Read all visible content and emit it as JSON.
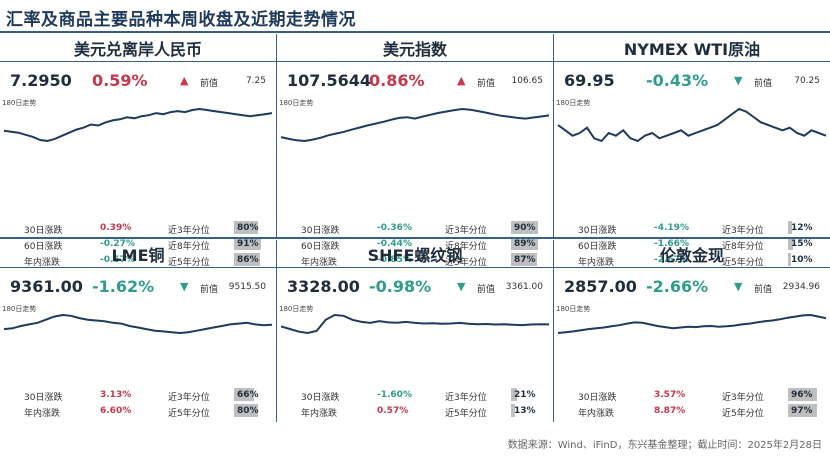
{
  "page": {
    "title": "汇率及商品主要品种本周收盘及近期走势情况",
    "source": "数据来源：Wind、iFinD，东兴基金整理；截止时间：2025年2月28日"
  },
  "colors": {
    "up": "#c8374b",
    "down": "#2f9d8a",
    "line": "#1f3a5c",
    "bar": "#bfbfbf"
  },
  "panels": [
    {
      "name": "美元兑离岸人民币",
      "price": "7.2950",
      "change": "0.59%",
      "direction": "up",
      "arrow": "▲",
      "prev_label": "前值",
      "prev": "7.25",
      "mini_label": "180日走势",
      "stats": [
        {
          "label": "30日涨跌",
          "value": "0.39%",
          "direction": "up",
          "pctl_label": "近3年分位",
          "pctl": "80%",
          "pctl_value": 80
        },
        {
          "label": "60日涨跌",
          "value": "-0.27%",
          "direction": "down",
          "pctl_label": "近8年分位",
          "pctl": "91%",
          "pctl_value": 91
        },
        {
          "label": "年内涨跌",
          "value": "-0.57%",
          "direction": "down",
          "pctl_label": "近5年分位",
          "pctl": "86%",
          "pctl_value": 86
        }
      ]
    },
    {
      "name": "美元指数",
      "price": "107.5644",
      "change": "0.86%",
      "direction": "up",
      "arrow": "▲",
      "prev_label": "前值",
      "prev": "106.65",
      "mini_label": "180日走势",
      "stats": [
        {
          "label": "30日涨跌",
          "value": "-0.36%",
          "direction": "down",
          "pctl_label": "近3年分位",
          "pctl": "90%",
          "pctl_value": 90
        },
        {
          "label": "60日涨跌",
          "value": "-0.44%",
          "direction": "down",
          "pctl_label": "近8年分位",
          "pctl": "89%",
          "pctl_value": 89
        },
        {
          "label": "年内涨跌",
          "value": "-0.85%",
          "direction": "down",
          "pctl_label": "近5年分位",
          "pctl": "87%",
          "pctl_value": 87
        }
      ]
    },
    {
      "name": "NYMEX WTI原油",
      "price": "69.95",
      "change": "-0.43%",
      "direction": "down",
      "arrow": "▼",
      "prev_label": "前值",
      "prev": "70.25",
      "mini_label": "180日走势",
      "stats": [
        {
          "label": "30日涨跌",
          "value": "-4.19%",
          "direction": "down",
          "pctl_label": "近3年分位",
          "pctl": "12%",
          "pctl_value": 12
        },
        {
          "label": "60日涨跌",
          "value": "-1.66%",
          "direction": "down",
          "pctl_label": "近8年分位",
          "pctl": "15%",
          "pctl_value": 15
        },
        {
          "label": "年内涨跌",
          "value": "-2.67%",
          "direction": "down",
          "pctl_label": "近5年分位",
          "pctl": "10%",
          "pctl_value": 10
        }
      ]
    },
    {
      "name": "LME铜",
      "price": "9361.00",
      "change": "-1.62%",
      "direction": "down",
      "arrow": "▼",
      "prev_label": "前值",
      "prev": "9515.50",
      "mini_label": "180日走势",
      "stats": [
        {
          "label": "30日涨跌",
          "value": "3.13%",
          "direction": "up",
          "pctl_label": "近3年分位",
          "pctl": "66%",
          "pctl_value": 66
        },
        {
          "label": "年内涨跌",
          "value": "6.60%",
          "direction": "up",
          "pctl_label": "近5年分位",
          "pctl": "80%",
          "pctl_value": 80
        }
      ]
    },
    {
      "name": "SHFE螺纹钢",
      "price": "3328.00",
      "change": "-0.98%",
      "direction": "down",
      "arrow": "▼",
      "prev_label": "前值",
      "prev": "3361.00",
      "mini_label": "180日走势",
      "stats": [
        {
          "label": "30日涨跌",
          "value": "-1.60%",
          "direction": "down",
          "pctl_label": "近3年分位",
          "pctl": "21%",
          "pctl_value": 21
        },
        {
          "label": "年内涨跌",
          "value": "0.57%",
          "direction": "up",
          "pctl_label": "近5年分位",
          "pctl": "13%",
          "pctl_value": 13
        }
      ]
    },
    {
      "name": "伦敦金现",
      "price": "2857.00",
      "change": "-2.66%",
      "direction": "down",
      "arrow": "▼",
      "prev_label": "前值",
      "prev": "2934.96",
      "mini_label": "180日走势",
      "stats": [
        {
          "label": "30日涨跌",
          "value": "3.57%",
          "direction": "up",
          "pctl_label": "近3年分位",
          "pctl": "96%",
          "pctl_value": 96
        },
        {
          "label": "年内涨跌",
          "value": "8.87%",
          "direction": "up",
          "pctl_label": "近5年分位",
          "pctl": "97%",
          "pctl_value": 97
        }
      ]
    }
  ],
  "chart_data": [
    {
      "type": "line",
      "title": "美元兑离岸人民币 180日走势",
      "values": [
        7.12,
        7.11,
        7.1,
        7.08,
        7.06,
        7.03,
        7.02,
        7.04,
        7.07,
        7.1,
        7.13,
        7.15,
        7.18,
        7.17,
        7.2,
        7.22,
        7.23,
        7.25,
        7.24,
        7.26,
        7.27,
        7.29,
        7.28,
        7.3,
        7.31,
        7.3,
        7.32,
        7.33,
        7.32,
        7.31,
        7.3,
        7.29,
        7.28,
        7.27,
        7.26,
        7.27,
        7.28,
        7.29
      ]
    },
    {
      "title": "美元指数 180日走势",
      "type": "line",
      "values": [
        101.5,
        101.0,
        100.6,
        100.4,
        100.8,
        101.3,
        102.0,
        102.5,
        103.0,
        103.6,
        104.2,
        104.8,
        105.3,
        105.8,
        106.4,
        106.9,
        107.1,
        106.7,
        107.3,
        107.8,
        108.3,
        108.7,
        109.1,
        109.4,
        109.2,
        108.8,
        108.4,
        107.9,
        107.5,
        107.2,
        106.9,
        106.7,
        107.0,
        107.3,
        107.6
      ]
    },
    {
      "type": "line",
      "title": "NYMEX WTI原油 180日走势",
      "values": [
        73,
        71,
        69,
        70,
        72,
        68,
        67,
        70,
        69,
        71,
        68,
        67,
        69,
        70,
        68,
        69,
        70,
        71,
        69,
        70,
        71,
        72,
        73,
        75,
        77,
        79,
        78,
        76,
        74,
        73,
        72,
        71,
        72,
        70,
        69,
        71,
        70,
        69
      ]
    },
    {
      "type": "line",
      "title": "LME铜 180日走势",
      "values": [
        9100,
        9150,
        9300,
        9400,
        9500,
        9700,
        9900,
        10000,
        9950,
        9800,
        9700,
        9650,
        9600,
        9500,
        9450,
        9300,
        9200,
        9100,
        9000,
        8950,
        8900,
        8850,
        8900,
        9000,
        9100,
        9200,
        9300,
        9400,
        9450,
        9500,
        9400,
        9350,
        9380
      ]
    },
    {
      "type": "line",
      "title": "SHFE螺纹钢 180日走势",
      "values": [
        3250,
        3150,
        3050,
        3000,
        3080,
        3500,
        3680,
        3650,
        3500,
        3420,
        3380,
        3450,
        3400,
        3390,
        3420,
        3380,
        3360,
        3370,
        3350,
        3360,
        3380,
        3350,
        3330,
        3340,
        3320,
        3330,
        3310,
        3300,
        3320,
        3330,
        3325
      ]
    },
    {
      "type": "line",
      "title": "伦敦金现 180日走势",
      "values": [
        2480,
        2500,
        2520,
        2550,
        2580,
        2600,
        2620,
        2650,
        2680,
        2720,
        2750,
        2740,
        2700,
        2660,
        2630,
        2600,
        2620,
        2640,
        2630,
        2650,
        2660,
        2640,
        2650,
        2670,
        2700,
        2720,
        2750,
        2780,
        2800,
        2830,
        2870,
        2900,
        2930,
        2940,
        2900,
        2857
      ]
    }
  ]
}
